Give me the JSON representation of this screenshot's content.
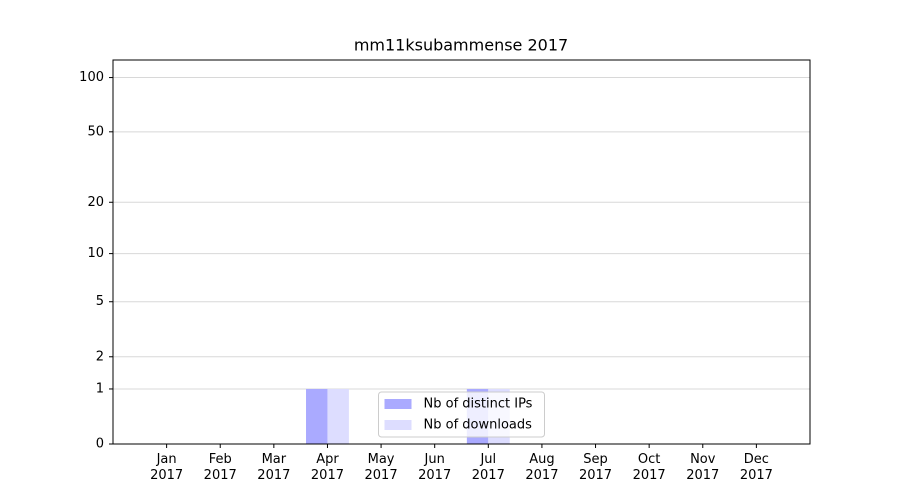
{
  "chart_data": {
    "type": "bar",
    "title": "mm11ksubammense 2017",
    "categories": [
      "Jan 2017",
      "Feb 2017",
      "Mar 2017",
      "Apr 2017",
      "May 2017",
      "Jun 2017",
      "Jul 2017",
      "Aug 2017",
      "Sep 2017",
      "Oct 2017",
      "Nov 2017",
      "Dec 2017"
    ],
    "series": [
      {
        "name": "Nb of distinct IPs",
        "color": "#aaaaff",
        "values": [
          0,
          0,
          0,
          1,
          0,
          0,
          1,
          0,
          0,
          0,
          0,
          0
        ]
      },
      {
        "name": "Nb of downloads",
        "color": "#ddddff",
        "values": [
          0,
          0,
          0,
          1,
          0,
          0,
          1,
          0,
          0,
          0,
          0,
          0
        ]
      }
    ],
    "yscale": "log1p",
    "ylim": [
      0,
      125
    ],
    "yticks": [
      0,
      1,
      2,
      5,
      10,
      20,
      50,
      100
    ],
    "grid": true,
    "legend": "lower center"
  }
}
